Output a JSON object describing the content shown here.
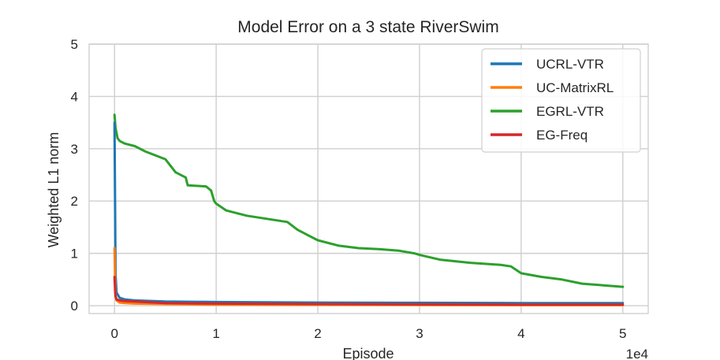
{
  "chart_data": {
    "type": "line",
    "title": "Model Error on a 3 state RiverSwim",
    "xlabel": "Episode",
    "ylabel": "Weighted L1 norm",
    "x_offset_text": "1e4",
    "xlim": [
      -0.25,
      5.25
    ],
    "ylim": [
      -0.15,
      5.0
    ],
    "xticks": [
      0,
      1,
      2,
      3,
      4,
      5
    ],
    "xtick_labels": [
      "0",
      "1",
      "2",
      "3",
      "4",
      "5"
    ],
    "yticks": [
      0,
      1,
      2,
      3,
      4,
      5
    ],
    "ytick_labels": [
      "0",
      "1",
      "2",
      "3",
      "4",
      "5"
    ],
    "grid": true,
    "legend_position": "top-right",
    "series": [
      {
        "name": "UCRL-VTR",
        "color": "#1f77b4",
        "x": [
          0,
          0.005,
          0.01,
          0.02,
          0.05,
          0.1,
          0.2,
          0.5,
          1,
          2,
          3,
          4,
          5
        ],
        "y": [
          3.5,
          2.0,
          0.6,
          0.25,
          0.15,
          0.12,
          0.1,
          0.08,
          0.07,
          0.06,
          0.055,
          0.05,
          0.05
        ]
      },
      {
        "name": "UC-MatrixRL",
        "color": "#ff7f0e",
        "x": [
          0,
          0.005,
          0.01,
          0.02,
          0.05,
          0.1,
          0.2,
          0.5,
          1,
          2,
          3,
          4,
          5
        ],
        "y": [
          1.1,
          0.5,
          0.2,
          0.1,
          0.06,
          0.05,
          0.04,
          0.03,
          0.02,
          0.015,
          0.012,
          0.01,
          0.01
        ]
      },
      {
        "name": "EGRL-VTR",
        "color": "#2ca02c",
        "x": [
          0,
          0.01,
          0.03,
          0.05,
          0.1,
          0.2,
          0.3,
          0.5,
          0.6,
          0.7,
          0.72,
          0.9,
          0.95,
          0.98,
          1.0,
          1.1,
          1.3,
          1.5,
          1.7,
          1.8,
          1.9,
          2.0,
          2.2,
          2.4,
          2.6,
          2.8,
          2.95,
          3.0,
          3.2,
          3.5,
          3.8,
          3.9,
          4.0,
          4.2,
          4.4,
          4.6,
          5.0
        ],
        "y": [
          3.65,
          3.4,
          3.2,
          3.15,
          3.1,
          3.05,
          2.95,
          2.8,
          2.55,
          2.45,
          2.3,
          2.28,
          2.2,
          2.0,
          1.95,
          1.82,
          1.72,
          1.66,
          1.6,
          1.45,
          1.35,
          1.25,
          1.15,
          1.1,
          1.08,
          1.05,
          1.0,
          0.97,
          0.88,
          0.82,
          0.78,
          0.75,
          0.62,
          0.55,
          0.5,
          0.42,
          0.36
        ]
      },
      {
        "name": "EG-Freq",
        "color": "#d62728",
        "x": [
          0,
          0.005,
          0.01,
          0.02,
          0.05,
          0.1,
          0.2,
          0.5,
          1,
          2,
          3,
          4,
          5
        ],
        "y": [
          0.55,
          0.3,
          0.18,
          0.12,
          0.1,
          0.09,
          0.08,
          0.05,
          0.04,
          0.03,
          0.025,
          0.02,
          0.02
        ]
      }
    ]
  }
}
